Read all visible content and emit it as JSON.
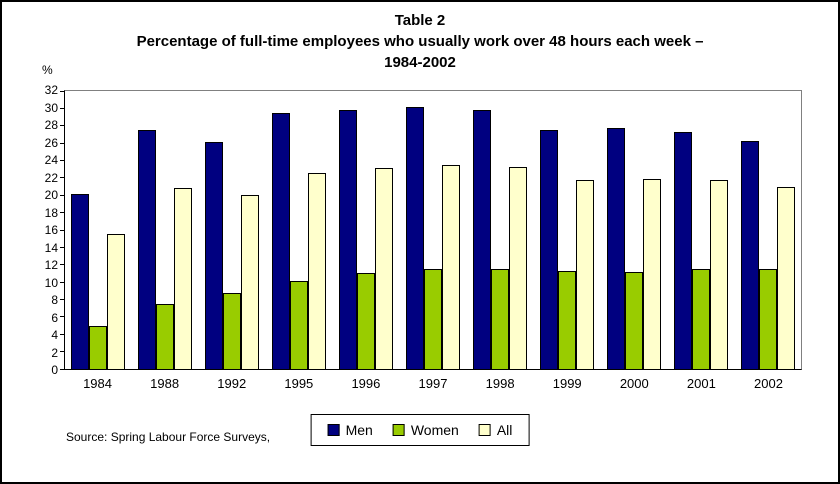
{
  "title": {
    "line1": "Table 2",
    "line2": "Percentage of full-time employees who usually work over 48 hours each week – 1984-2002"
  },
  "y_axis_unit": "%",
  "source": "Source: Spring Labour Force Surveys,",
  "legend": [
    {
      "name": "Men",
      "color": "#000080"
    },
    {
      "name": "Women",
      "color": "#99CC00"
    },
    {
      "name": "All",
      "color": "#FFFFCC"
    }
  ],
  "chart_data": {
    "type": "bar",
    "title": "Percentage of full-time employees who usually work over 48 hours each week – 1984-2002",
    "categories": [
      "1984",
      "1988",
      "1992",
      "1995",
      "1996",
      "1997",
      "1998",
      "1999",
      "2000",
      "2001",
      "2002"
    ],
    "series": [
      {
        "name": "Men",
        "color": "#000080",
        "values": [
          20.2,
          27.5,
          26.1,
          29.5,
          29.8,
          30.2,
          29.8,
          27.5,
          27.7,
          27.3,
          26.2
        ]
      },
      {
        "name": "Women",
        "color": "#99CC00",
        "values": [
          5.0,
          7.5,
          8.8,
          10.1,
          11.0,
          11.5,
          11.5,
          11.3,
          11.2,
          11.5,
          11.5
        ]
      },
      {
        "name": "All",
        "color": "#FFFFCC",
        "values": [
          15.5,
          20.8,
          20.0,
          22.6,
          23.1,
          23.5,
          23.3,
          21.7,
          21.9,
          21.7,
          21.0
        ]
      }
    ],
    "xlabel": "",
    "ylabel": "%",
    "ylim": [
      0,
      32
    ],
    "ytick_step": 2,
    "grid": false,
    "legend_position": "bottom"
  }
}
